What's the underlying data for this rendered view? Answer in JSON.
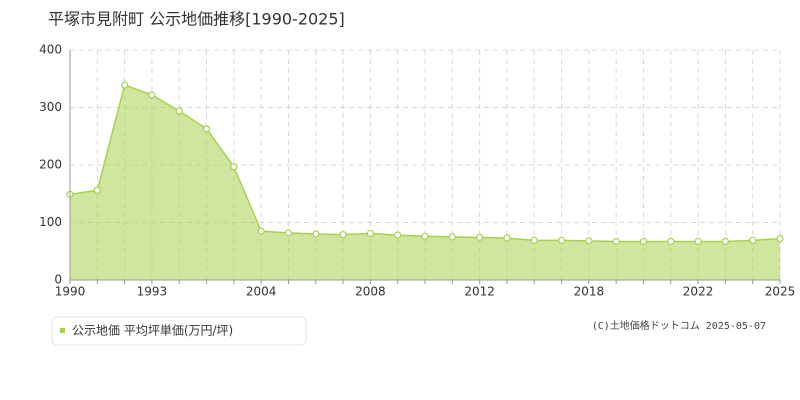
{
  "chart_data": {
    "type": "area",
    "title": "平塚市見附町 公示地価推移[1990-2025]",
    "credit": "(C)土地価格ドットコム 2025-05-07",
    "categories": [
      "1990",
      null,
      null,
      "1993",
      null,
      null,
      null,
      "2004",
      null,
      null,
      null,
      "2008",
      null,
      null,
      null,
      "2012",
      null,
      null,
      null,
      "2018",
      null,
      null,
      null,
      "2022",
      null,
      null,
      "2025"
    ],
    "series": [
      {
        "name": "公示地価 平均坪単価(万円/坪)",
        "color": "#a8d24e",
        "values": [
          149,
          156,
          339,
          322,
          294,
          263,
          197,
          85,
          82,
          80,
          79,
          81,
          78,
          76,
          75,
          74,
          73,
          69,
          69,
          68,
          67,
          67,
          67,
          67,
          67,
          69,
          72
        ]
      }
    ],
    "ylim": [
      0,
      400
    ],
    "yticks": [
      0,
      100,
      200,
      300,
      400
    ],
    "grid": true,
    "legend": "bottom-left"
  }
}
